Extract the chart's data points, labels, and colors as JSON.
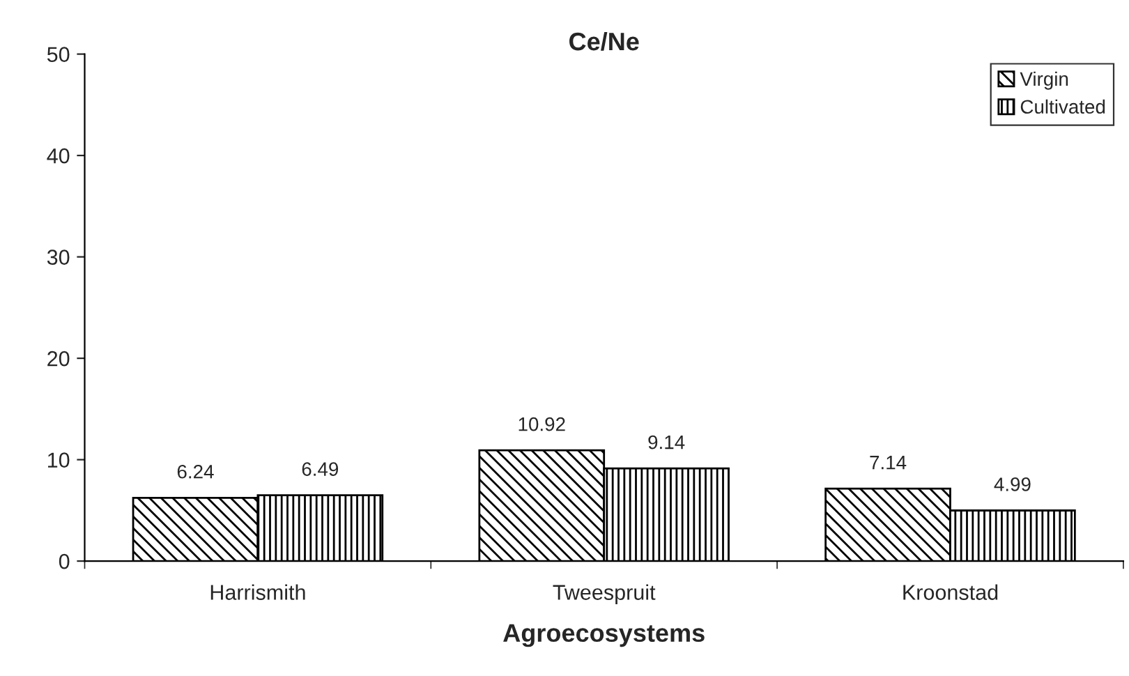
{
  "chart_data": {
    "type": "bar",
    "title": "Ce/Ne",
    "xlabel": "Agroecosystems",
    "categories": [
      "Harrismith",
      "Tweespruit",
      "Kroonstad"
    ],
    "series": [
      {
        "name": "Virgin",
        "color": "#000000",
        "values": [
          6.24,
          10.92,
          7.14
        ]
      },
      {
        "name": "Cultivated",
        "color": "#000000",
        "values": [
          6.49,
          9.14,
          4.99
        ]
      }
    ],
    "ylim": [
      0,
      50
    ],
    "yticks": [
      0,
      10,
      20,
      30,
      40,
      50
    ],
    "data_labels": true,
    "legend": "top right",
    "grid": false
  }
}
